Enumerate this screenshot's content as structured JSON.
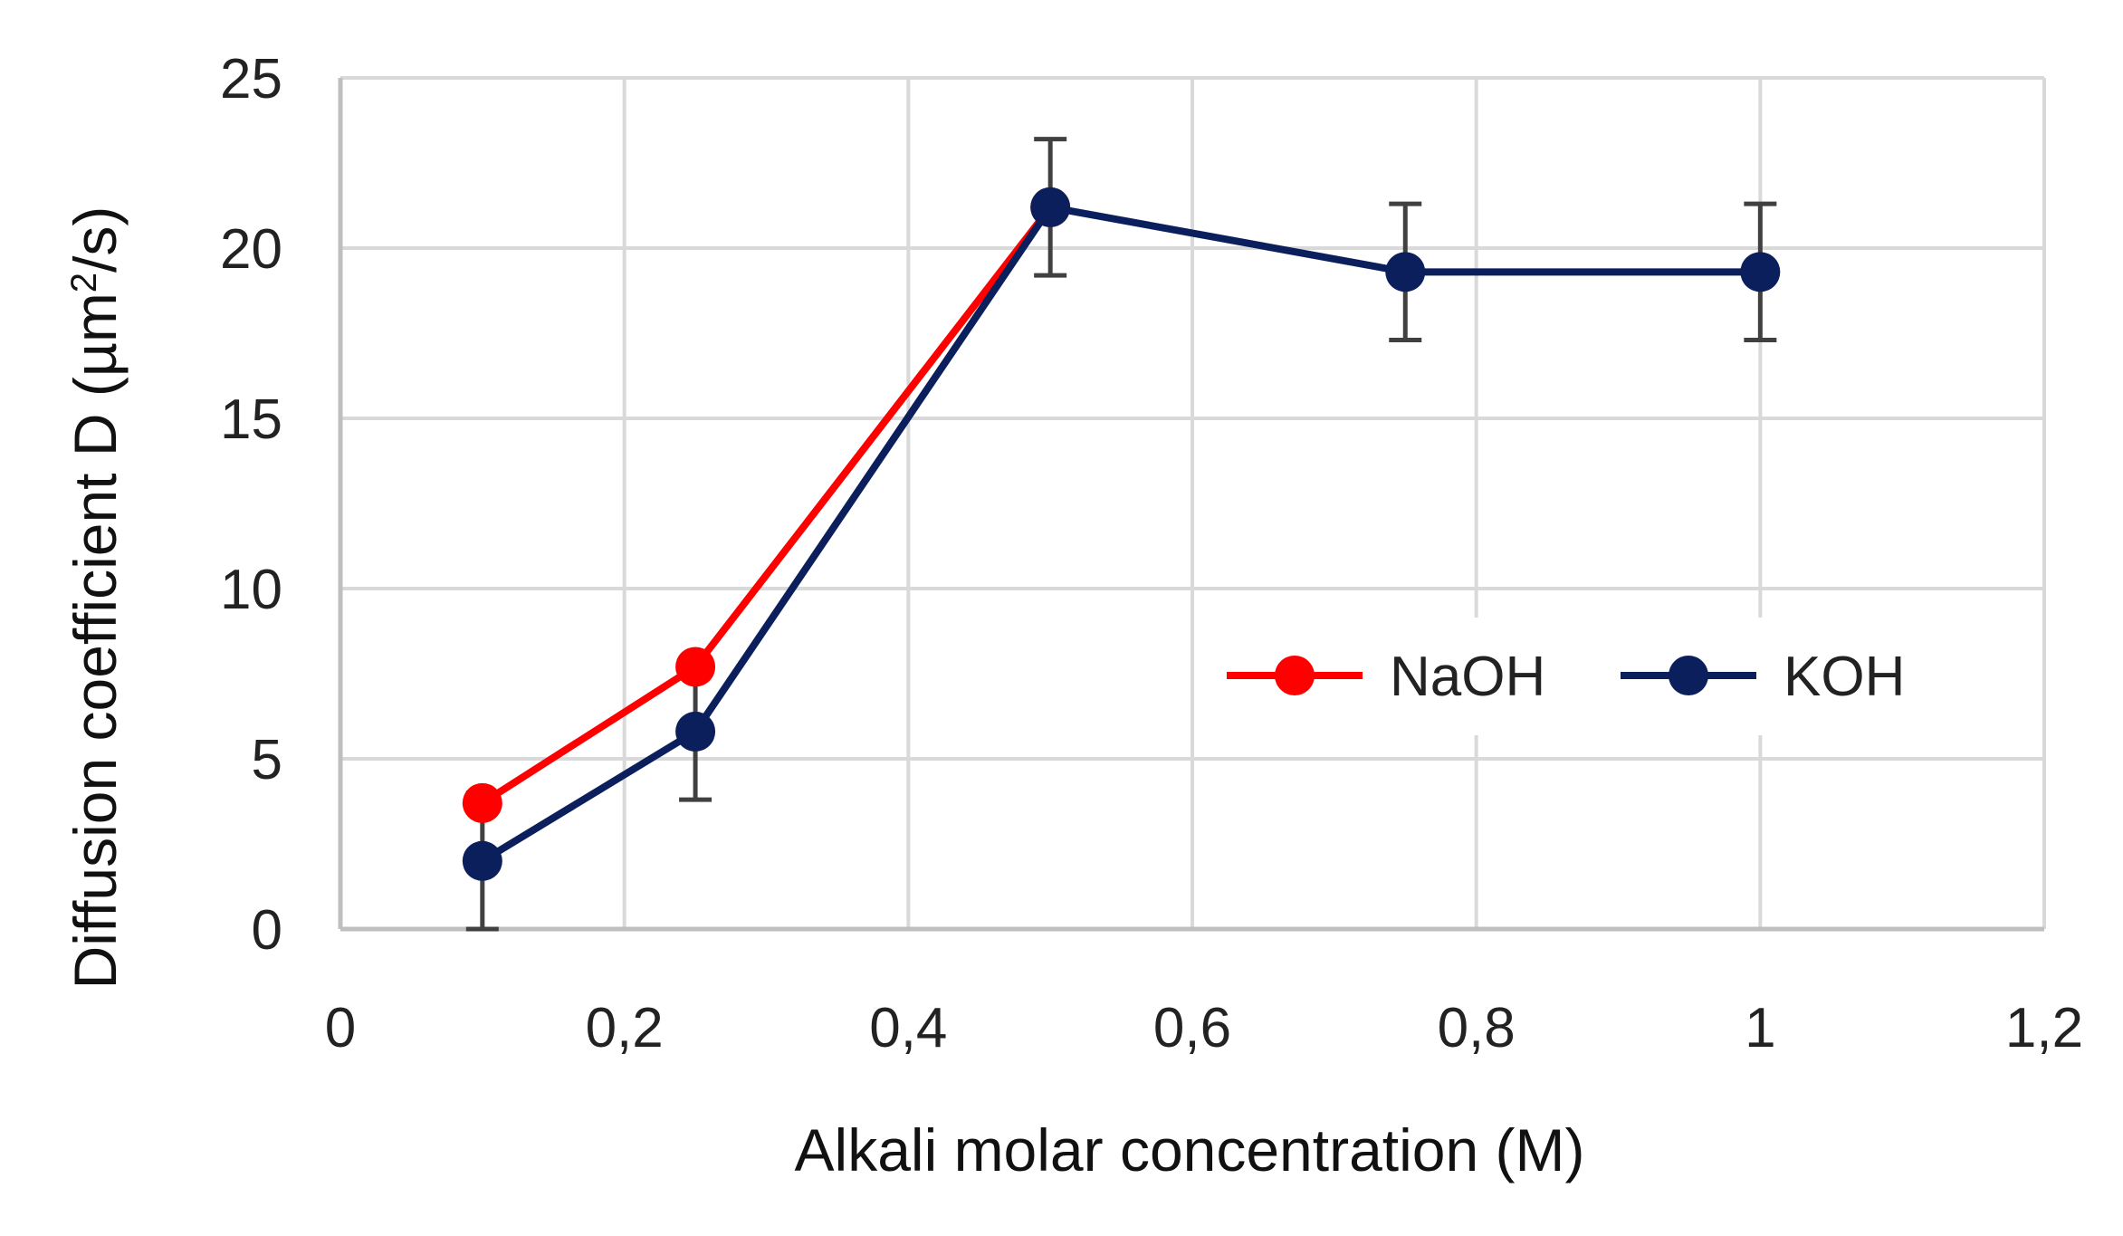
{
  "chart_data": {
    "type": "line",
    "title": "",
    "xlabel": "Alkali molar concentration (M)",
    "ylabel": {
      "main": "Diffusion coefficient D (µm",
      "sup": "2",
      "end": "/s)"
    },
    "xlim": [
      0,
      1.2
    ],
    "ylim": [
      0,
      25
    ],
    "x_ticks": [
      0,
      0.2,
      0.4,
      0.6,
      0.8,
      1.0,
      1.2
    ],
    "x_tick_labels": [
      "0",
      "0,2",
      "0,4",
      "0,6",
      "0,8",
      "1",
      "1,2"
    ],
    "y_ticks": [
      0,
      5,
      10,
      15,
      20,
      25
    ],
    "y_tick_labels": [
      "0",
      "5",
      "10",
      "15",
      "20",
      "25"
    ],
    "grid": true,
    "legend_position": "middle-right",
    "series": [
      {
        "name": "NaOH",
        "color": "#ff0000",
        "x": [
          0.1,
          0.25,
          0.5
        ],
        "y": [
          3.7,
          7.7,
          21.2
        ],
        "error": [
          0,
          0,
          0
        ]
      },
      {
        "name": "KOH",
        "color": "#0a1f5c",
        "x": [
          0.1,
          0.25,
          0.5,
          0.75,
          1.0
        ],
        "y": [
          2.0,
          5.8,
          21.2,
          19.3,
          19.3
        ],
        "error": [
          2.0,
          2.0,
          2.0,
          2.0,
          2.0
        ]
      }
    ]
  }
}
